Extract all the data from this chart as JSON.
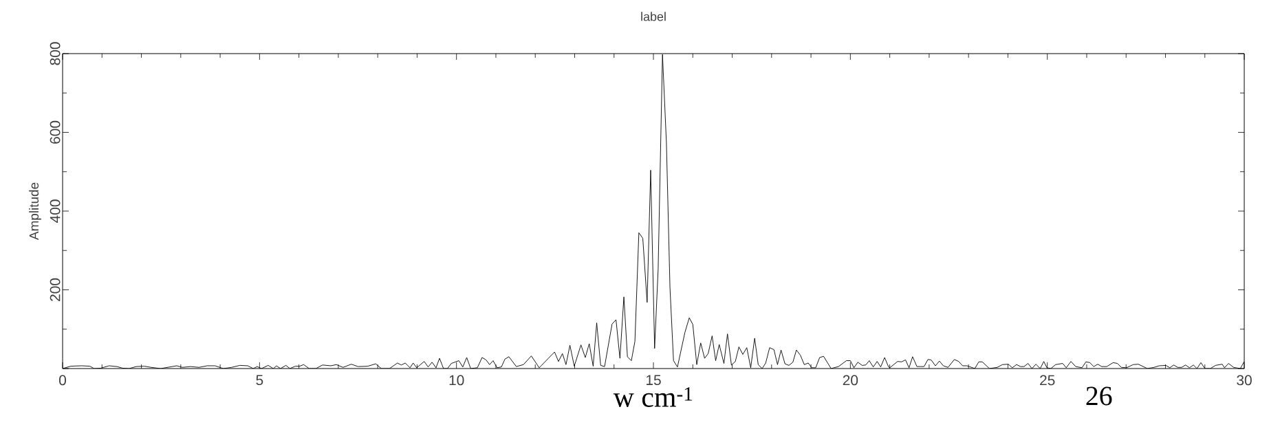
{
  "chart_data": {
    "type": "line",
    "title": "label",
    "xlabel": "w cm$^{-1}$",
    "ylabel": "Amplitude",
    "annotations": [
      "26"
    ],
    "xlim": [
      0,
      30
    ],
    "ylim": [
      0,
      800
    ],
    "xticks": [
      0,
      5,
      10,
      15,
      20,
      25,
      30
    ],
    "yticks": [
      {
        "value": 0,
        "label": null
      },
      200,
      400,
      600,
      800
    ],
    "series": [
      {
        "color": "#000000",
        "x": [
          0,
          0.21,
          0.48,
          0.69,
          0.8,
          0.97,
          1.18,
          1.38,
          1.52,
          1.69,
          1.87,
          2.07,
          2.25,
          2.49,
          2.9,
          3.04,
          3.25,
          3.46,
          3.67,
          3.87,
          4.08,
          4.29,
          4.5,
          4.7,
          4.84,
          4.94,
          5.05,
          5.22,
          5.35,
          5.43,
          5.53,
          5.67,
          5.77,
          5.91,
          6.02,
          6.12,
          6.26,
          6.43,
          6.6,
          6.81,
          6.95,
          7.12,
          7.33,
          7.5,
          7.75,
          7.95,
          8.09,
          8.3,
          8.5,
          8.6,
          8.7,
          8.82,
          8.9,
          8.99,
          9.18,
          9.28,
          9.38,
          9.48,
          9.57,
          9.67,
          9.77,
          9.87,
          10.06,
          10.16,
          10.26,
          10.36,
          10.53,
          10.65,
          10.75,
          10.84,
          10.93,
          11.03,
          11.14,
          11.23,
          11.33,
          11.52,
          11.7,
          11.9,
          12.1,
          12.49,
          12.59,
          12.69,
          12.78,
          12.88,
          12.99,
          13.16,
          13.27,
          13.37,
          13.47,
          13.56,
          13.66,
          13.76,
          13.95,
          14.05,
          14.15,
          14.25,
          14.34,
          14.44,
          14.53,
          14.63,
          14.73,
          14.84,
          14.93,
          15.03,
          15.12,
          15.23,
          15.33,
          15.42,
          15.51,
          15.61,
          15.8,
          15.91,
          16.0,
          16.1,
          16.2,
          16.3,
          16.39,
          16.49,
          16.58,
          16.67,
          16.79,
          16.88,
          16.98,
          17.08,
          17.17,
          17.27,
          17.37,
          17.47,
          17.57,
          17.66,
          17.76,
          17.85,
          17.95,
          18.06,
          18.15,
          18.24,
          18.34,
          18.44,
          18.54,
          18.63,
          18.73,
          18.83,
          18.93,
          19.02,
          19.12,
          19.22,
          19.32,
          19.51,
          19.7,
          19.9,
          20.0,
          20.09,
          20.19,
          20.3,
          20.39,
          20.48,
          20.58,
          20.68,
          20.77,
          20.87,
          20.97,
          21.0,
          21.2,
          21.3,
          21.4,
          21.49,
          21.58,
          21.69,
          21.87,
          21.97,
          22.05,
          22.16,
          22.26,
          22.36,
          22.48,
          22.64,
          22.75,
          22.85,
          22.96,
          23.16,
          23.26,
          23.35,
          23.53,
          23.73,
          23.86,
          24.01,
          24.11,
          24.22,
          24.32,
          24.41,
          24.51,
          24.61,
          24.71,
          24.82,
          24.91,
          24.99,
          25.09,
          25.21,
          25.39,
          25.48,
          25.6,
          25.72,
          25.88,
          25.98,
          26.08,
          26.18,
          26.28,
          26.38,
          26.51,
          26.67,
          26.78,
          26.88,
          27.01,
          27.18,
          27.31,
          27.54,
          27.71,
          27.84,
          28.01,
          28.11,
          28.21,
          28.31,
          28.41,
          28.51,
          28.61,
          28.71,
          28.8,
          28.9,
          29.0,
          29.14,
          29.27,
          29.44,
          29.5,
          29.6,
          29.73,
          29.9,
          30
        ],
        "values": [
          0,
          6,
          7,
          6,
          0,
          1,
          7,
          5,
          1,
          0,
          5,
          6,
          3,
          0,
          7,
          3,
          5,
          3,
          7,
          7,
          0,
          3,
          8,
          7,
          0,
          5,
          0,
          8,
          0,
          7,
          0,
          8,
          0,
          6,
          6,
          10,
          0,
          0,
          9,
          7,
          10,
          3,
          11,
          5,
          6,
          12,
          0,
          0,
          14,
          9,
          14,
          2,
          14,
          2,
          18,
          4,
          16,
          2,
          26,
          0,
          0,
          13,
          20,
          4,
          28,
          0,
          2,
          28,
          22,
          10,
          20,
          2,
          4,
          24,
          30,
          5,
          10,
          32,
          2,
          42,
          18,
          38,
          10,
          59,
          6,
          60,
          28,
          63,
          6,
          116,
          8,
          5,
          113,
          124,
          26,
          182,
          30,
          20,
          69,
          345,
          331,
          168,
          504,
          51,
          253,
          798,
          573,
          206,
          20,
          4,
          92,
          129,
          112,
          10,
          65,
          26,
          38,
          83,
          20,
          61,
          13,
          88,
          9,
          18,
          55,
          36,
          53,
          2,
          77,
          10,
          0,
          14,
          53,
          48,
          10,
          47,
          12,
          8,
          16,
          47,
          34,
          10,
          14,
          2,
          2,
          28,
          31,
          0,
          5,
          20,
          20,
          2,
          16,
          8,
          9,
          20,
          4,
          18,
          4,
          28,
          4,
          2,
          18,
          17,
          22,
          2,
          30,
          5,
          5,
          23,
          22,
          7,
          19,
          7,
          3,
          23,
          18,
          7,
          7,
          0,
          17,
          17,
          0,
          3,
          10,
          11,
          2,
          10,
          5,
          5,
          13,
          0,
          11,
          0,
          18,
          2,
          0,
          10,
          13,
          2,
          18,
          5,
          2,
          17,
          15,
          5,
          11,
          5,
          5,
          15,
          13,
          3,
          2,
          10,
          11,
          0,
          3,
          7,
          8,
          2,
          9,
          3,
          3,
          9,
          2,
          9,
          0,
          15,
          0,
          0,
          8,
          11,
          2,
          13,
          3,
          0,
          18
        ]
      }
    ]
  }
}
